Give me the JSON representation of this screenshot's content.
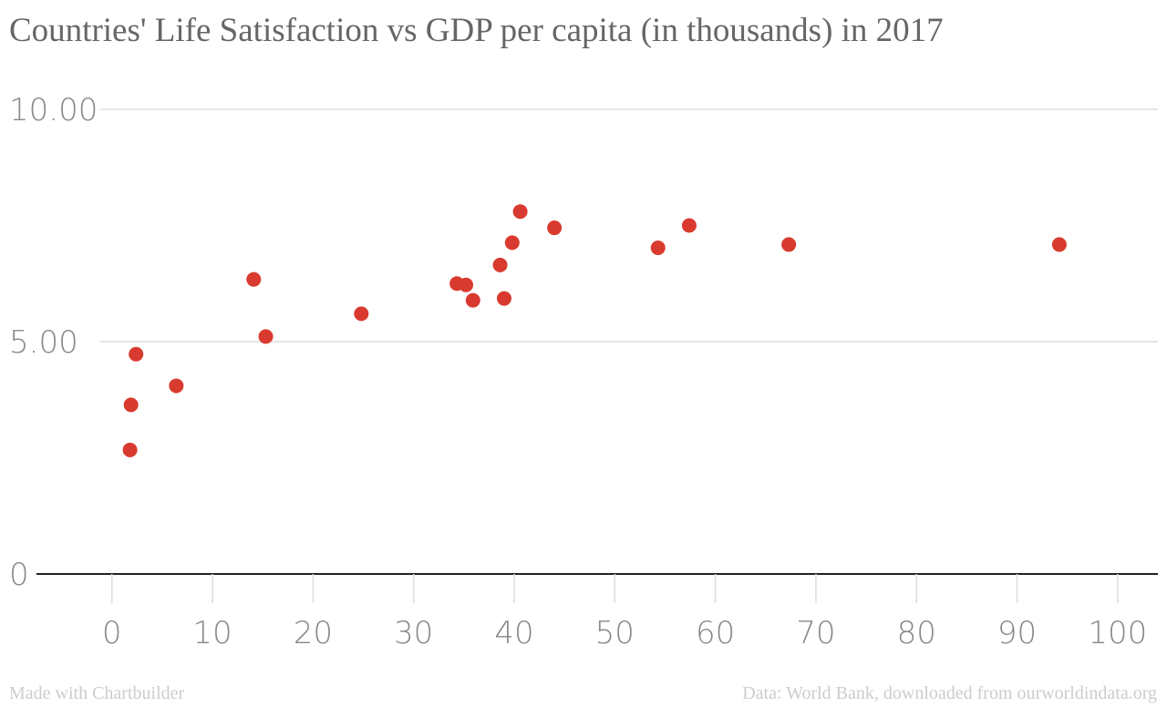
{
  "chart_data": {
    "type": "scatter",
    "title": "Countries' Life Satisfaction vs GDP per capita (in thousands) in 2017",
    "xlabel": "",
    "ylabel": "",
    "xlim": [
      -7.5,
      104
    ],
    "ylim": [
      0,
      10
    ],
    "x_ticks": [
      0,
      10,
      20,
      30,
      40,
      50,
      60,
      70,
      80,
      90,
      100
    ],
    "y_ticks": [
      0,
      5,
      10
    ],
    "y_tick_labels": [
      "0",
      "5.00",
      "10.00"
    ],
    "grid": true,
    "point_color": "#d93a2f",
    "points": [
      {
        "x": 1.8,
        "y": 2.67
      },
      {
        "x": 1.9,
        "y": 3.64
      },
      {
        "x": 2.4,
        "y": 4.73
      },
      {
        "x": 6.4,
        "y": 4.05
      },
      {
        "x": 14.1,
        "y": 6.34
      },
      {
        "x": 15.3,
        "y": 5.11
      },
      {
        "x": 24.8,
        "y": 5.6
      },
      {
        "x": 34.3,
        "y": 6.25
      },
      {
        "x": 35.2,
        "y": 6.22
      },
      {
        "x": 35.9,
        "y": 5.89
      },
      {
        "x": 38.6,
        "y": 6.65
      },
      {
        "x": 39.0,
        "y": 5.93
      },
      {
        "x": 39.8,
        "y": 7.13
      },
      {
        "x": 40.6,
        "y": 7.8
      },
      {
        "x": 44.0,
        "y": 7.45
      },
      {
        "x": 54.3,
        "y": 7.02
      },
      {
        "x": 57.4,
        "y": 7.5
      },
      {
        "x": 67.3,
        "y": 7.09
      },
      {
        "x": 94.2,
        "y": 7.09
      }
    ]
  },
  "footer": {
    "left": "Made with Chartbuilder",
    "right": "Data: World Bank, downloaded from ourworldindata.org"
  }
}
